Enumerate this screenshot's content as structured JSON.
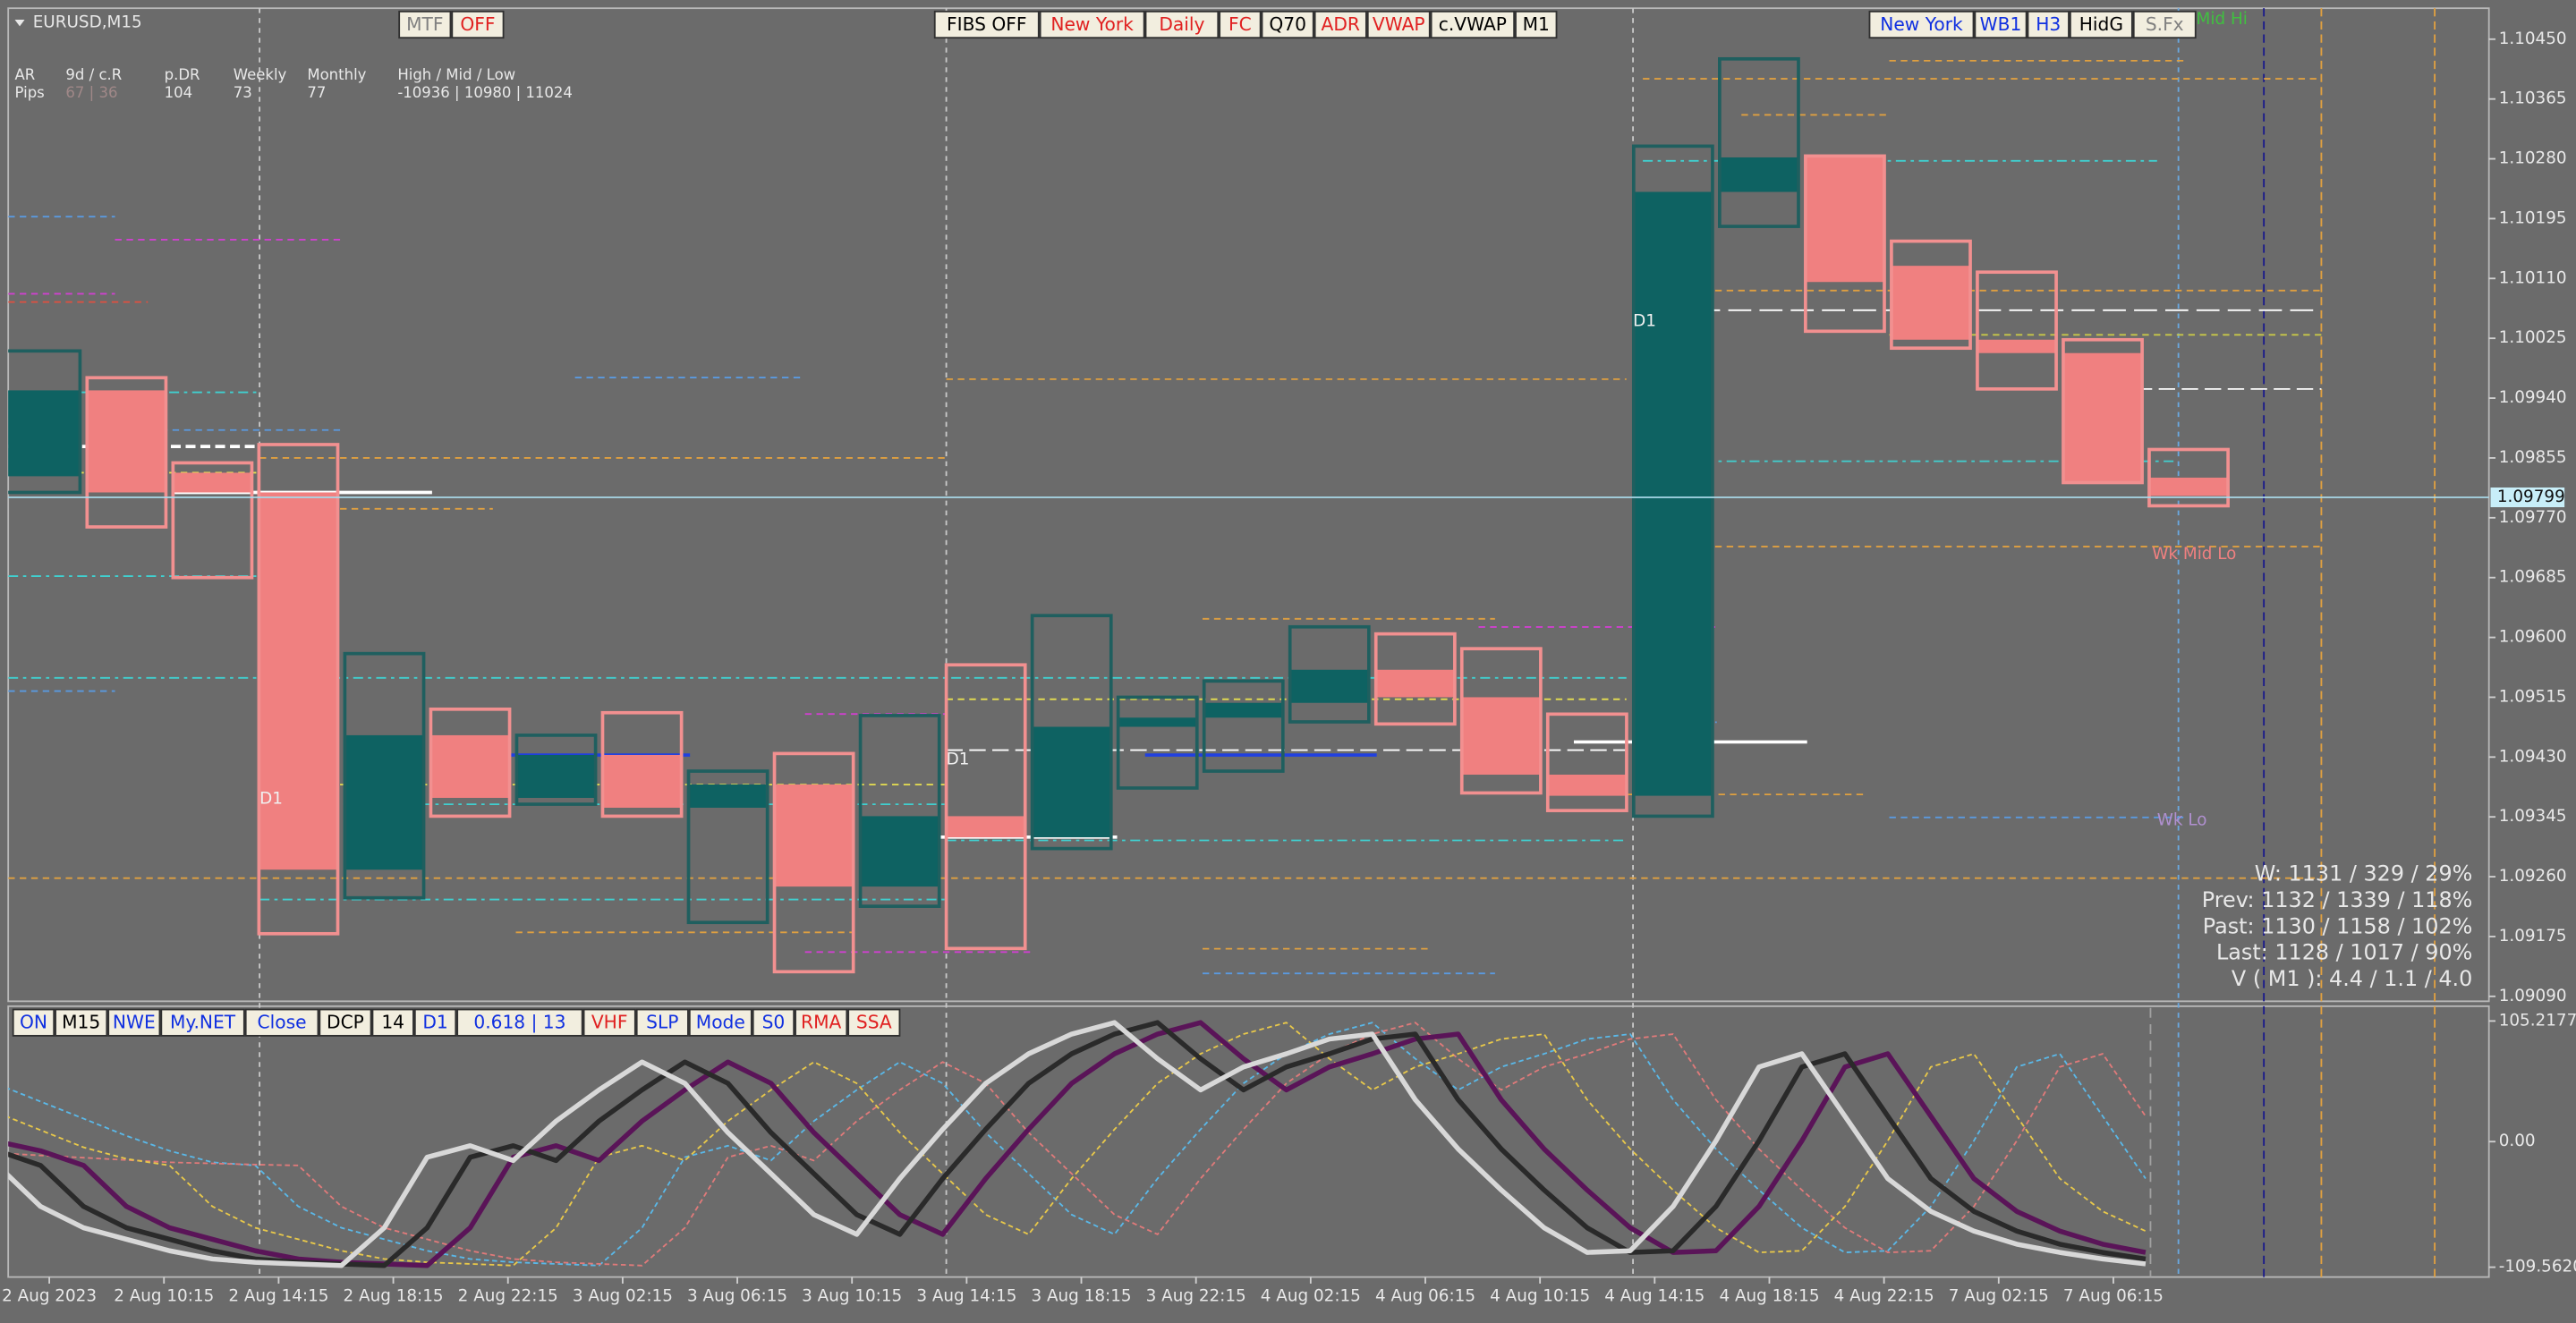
{
  "chart_data": [
    {
      "type": "candlestick",
      "title": "EURUSD,M15",
      "open": [
        1.09829,
        1.09951,
        1.09834,
        1.09806,
        1.0927,
        1.09461,
        1.09372,
        1.09433,
        1.09358,
        1.09391,
        1.09246,
        1.09346,
        1.09316,
        1.09473,
        1.09486,
        1.09507,
        1.09554,
        1.09515,
        1.09405,
        1.09375,
        1.10233,
        1.10282,
        1.10128,
        1.10023,
        1.10004,
        1.09827
      ],
      "high": [
        1.10007,
        1.09969,
        1.09848,
        1.09874,
        1.09577,
        1.09498,
        1.09461,
        1.09493,
        1.0941,
        1.09435,
        1.09489,
        1.09561,
        1.09631,
        1.09515,
        1.09538,
        1.09615,
        1.09605,
        1.09584,
        1.09491,
        1.10298,
        1.10422,
        1.10284,
        1.10163,
        1.10119,
        1.10023,
        1.09867
      ],
      "low": [
        1.09806,
        1.09757,
        1.09685,
        1.09179,
        1.0923,
        1.09346,
        1.09363,
        1.09346,
        1.09195,
        1.09125,
        1.09218,
        1.09158,
        1.093,
        1.09386,
        1.0941,
        1.0948,
        1.09477,
        1.09379,
        1.09354,
        1.09346,
        1.10184,
        1.10035,
        1.10011,
        1.09953,
        1.0982,
        1.09787
      ],
      "close": [
        1.09951,
        1.09806,
        1.09806,
        1.0927,
        1.09461,
        1.09372,
        1.09433,
        1.09358,
        1.09391,
        1.09246,
        1.09346,
        1.09316,
        1.09473,
        1.09486,
        1.09507,
        1.09554,
        1.09515,
        1.09405,
        1.09375,
        1.10233,
        1.10282,
        1.10105,
        1.10023,
        1.10004,
        1.0982,
        1.09801
      ],
      "colors": {
        "up": "#0e6262",
        "down": "#f08080",
        "up_edge": "#1f5f5f",
        "down_edge": "#f29090"
      },
      "ylim": [
        1.09083,
        1.10494
      ],
      "yticks": [
        {
          "value": 1.1045,
          "label": "1.10450"
        },
        1.10365,
        {
          "value": 1.1028,
          "label": "1.10280"
        },
        1.10195,
        {
          "value": 1.1011,
          "label": "1.10110"
        },
        1.10025,
        {
          "value": 1.0994,
          "label": "1.09940"
        },
        1.09855,
        {
          "value": 1.0977,
          "label": "1.09770"
        },
        1.09685,
        {
          "value": 1.096,
          "label": "1.09600"
        },
        1.09515,
        {
          "value": 1.0943,
          "label": "1.09430"
        },
        1.09345,
        {
          "value": 1.0926,
          "label": "1.09260"
        },
        1.09175,
        {
          "value": 1.0909,
          "label": "1.09090"
        }
      ],
      "current_price": 1.09799,
      "x_labels": [
        "2 Aug 2023",
        "2 Aug 10:15",
        "2 Aug 14:15",
        "2 Aug 18:15",
        "2 Aug 22:15",
        "3 Aug 02:15",
        "3 Aug 06:15",
        "3 Aug 10:15",
        "3 Aug 14:15",
        "3 Aug 18:15",
        "3 Aug 22:15",
        "4 Aug 02:15",
        "4 Aug 06:15",
        "4 Aug 10:15",
        "4 Aug 14:15",
        "4 Aug 18:15",
        "4 Aug 22:15",
        "7 Aug 02:15",
        "7 Aug 06:15"
      ],
      "annotations": [
        "D1",
        "D1",
        "D1",
        "Wk Mid Lo",
        "Wk Lo",
        "Fx Mid Hi"
      ]
    },
    {
      "type": "line",
      "ylim": [
        -118.15,
        116.7
      ],
      "yticks": [
        105.21774,
        {
          "value": 0,
          "label": "0.00"
        },
        {
          "value": -109.562,
          "label": "-109.5620"
        }
      ],
      "series": [
        {
          "color": "#5ab8e8",
          "dashed": true,
          "width": 1,
          "values": [
            50.0,
            35.0,
            20.0,
            5.0,
            -8.0,
            -18.0,
            -20.8,
            -56.6,
            -75.2,
            -85.2,
            -95.2,
            -102.4,
            -105.3,
            -106.7,
            -108.1,
            -75.2,
            -13.6,
            -3.6,
            -16.5,
            17.9,
            45.1,
            69.5,
            50.8,
            7.9,
            -27.9,
            -63.7,
            -80.9,
            -32.2,
            10.7,
            50.8,
            76.6,
            93.8,
            103.8,
            72.3,
            45.1,
            65.2,
            76.6,
            89.5,
            93.8,
            36.5,
            -6.4,
            -42.2,
            -75.2,
            -96.7,
            -95.2,
            -56.6,
            0.7,
            65.2,
            76.6,
            22.2,
            -32.2
          ]
        },
        {
          "color": "#e07a7a",
          "dashed": true,
          "width": 1,
          "values": [
            -10.0,
            -12.0,
            -14.0,
            -16.0,
            -18.0,
            -19.0,
            -20.0,
            -20.8,
            -56.6,
            -75.2,
            -85.2,
            -95.2,
            -102.4,
            -105.3,
            -106.7,
            -108.1,
            -75.2,
            -13.6,
            -3.6,
            -16.5,
            17.9,
            45.1,
            69.5,
            50.8,
            7.9,
            -27.9,
            -63.7,
            -80.9,
            -32.2,
            10.7,
            50.8,
            76.6,
            93.8,
            103.8,
            72.3,
            45.1,
            65.2,
            76.6,
            89.5,
            93.8,
            36.5,
            -6.4,
            -42.2,
            -75.2,
            -96.7,
            -95.2,
            -56.6,
            0.7,
            65.2,
            76.6,
            22.2
          ]
        },
        {
          "color": "#e8c84a",
          "dashed": true,
          "width": 1,
          "values": [
            25.0,
            10.0,
            -5.0,
            -15.0,
            -20.8,
            -56.6,
            -75.2,
            -85.2,
            -95.2,
            -102.4,
            -105.3,
            -106.7,
            -108.1,
            -75.2,
            -13.6,
            -3.6,
            -16.5,
            17.9,
            45.1,
            69.5,
            50.8,
            7.9,
            -27.9,
            -63.7,
            -80.9,
            -32.2,
            10.7,
            50.8,
            76.6,
            93.8,
            103.8,
            72.3,
            45.1,
            65.2,
            76.6,
            89.5,
            93.8,
            36.5,
            -6.4,
            -42.2,
            -75.2,
            -96.7,
            -95.2,
            -56.6,
            0.7,
            65.2,
            76.6,
            22.2,
            -32.2,
            -60.9,
            -78.0
          ]
        },
        {
          "color": "#5a1458",
          "dashed": false,
          "width": 3,
          "values": [
            0.0,
            -8.0,
            -20.8,
            -56.6,
            -75.2,
            -85.2,
            -95.2,
            -102.4,
            -105.3,
            -106.7,
            -108.1,
            -75.2,
            -13.6,
            -3.6,
            -16.5,
            17.9,
            45.1,
            69.5,
            50.8,
            7.9,
            -27.9,
            -63.7,
            -80.9,
            -32.2,
            10.7,
            50.8,
            76.6,
            93.8,
            103.8,
            72.3,
            45.1,
            65.2,
            76.6,
            89.5,
            93.8,
            36.5,
            -6.4,
            -42.2,
            -75.2,
            -96.7,
            -95.2,
            -56.6,
            0.7,
            65.2,
            76.6,
            22.2,
            -32.2,
            -60.9,
            -78.0,
            -89.5,
            -96.7
          ]
        },
        {
          "color": "#2a2a2a",
          "dashed": false,
          "width": 3,
          "values": [
            -8.0,
            -20.8,
            -56.6,
            -75.2,
            -85.2,
            -95.2,
            -102.4,
            -105.3,
            -106.7,
            -108.1,
            -75.2,
            -13.6,
            -3.6,
            -16.5,
            17.9,
            45.1,
            69.5,
            50.8,
            7.9,
            -27.9,
            -63.7,
            -80.9,
            -32.2,
            10.7,
            50.8,
            76.6,
            93.8,
            103.8,
            72.3,
            45.1,
            65.2,
            76.6,
            89.5,
            93.8,
            36.5,
            -6.4,
            -42.2,
            -75.2,
            -96.7,
            -95.2,
            -56.6,
            0.7,
            65.2,
            76.6,
            22.2,
            -32.2,
            -60.9,
            -78.0,
            -89.5,
            -96.7,
            -102.4
          ]
        },
        {
          "color": "#d8d8d8",
          "dashed": false,
          "width": 3,
          "values": [
            -20.8,
            -56.6,
            -75.2,
            -85.2,
            -95.2,
            -102.4,
            -105.3,
            -106.7,
            -108.1,
            -75.2,
            -13.6,
            -3.6,
            -16.5,
            17.9,
            45.1,
            69.5,
            50.8,
            7.9,
            -27.9,
            -63.7,
            -80.9,
            -32.2,
            10.7,
            50.8,
            76.6,
            93.8,
            103.8,
            72.3,
            45.1,
            65.2,
            76.6,
            89.5,
            93.8,
            36.5,
            -6.4,
            -42.2,
            -75.2,
            -96.7,
            -95.2,
            -56.6,
            0.7,
            65.2,
            76.6,
            22.2,
            -32.2,
            -60.9,
            -78.0,
            -89.5,
            -96.7,
            -102.4,
            -106.7
          ]
        }
      ]
    }
  ],
  "toolbar_top_left": [
    {
      "label": "MTF",
      "color": "#808080"
    },
    {
      "label": "OFF",
      "color": "#e02020"
    }
  ],
  "toolbar_top_center": [
    {
      "label": "FIBS OFF",
      "color": "#000000"
    },
    {
      "label": "New York",
      "color": "#e02020"
    },
    {
      "label": "Daily",
      "color": "#e02020"
    },
    {
      "label": "FC",
      "color": "#e02020"
    },
    {
      "label": "Q70",
      "color": "#000000"
    },
    {
      "label": "ADR",
      "color": "#e02020"
    },
    {
      "label": "VWAP",
      "color": "#e02020"
    },
    {
      "label": "c.VWAP",
      "color": "#000000"
    },
    {
      "label": "M1",
      "color": "#000000"
    }
  ],
  "toolbar_top_right": [
    {
      "label": "New York",
      "color": "#1030e0"
    },
    {
      "label": "WB1",
      "color": "#1030e0"
    },
    {
      "label": "H3",
      "color": "#1030e0"
    },
    {
      "label": "HidG",
      "color": "#000000"
    },
    {
      "label": "S.Fx",
      "color": "#808080"
    }
  ],
  "toolbar_bottom": [
    {
      "label": "ON",
      "color": "#1030e0"
    },
    {
      "label": "M15",
      "color": "#000000"
    },
    {
      "label": "NWE",
      "color": "#1030e0"
    },
    {
      "label": "My.NET",
      "color": "#1030e0"
    },
    {
      "label": "Close",
      "color": "#1030e0"
    },
    {
      "label": "DCP",
      "color": "#000000"
    },
    {
      "label": "14",
      "color": "#000000"
    },
    {
      "label": "D1",
      "color": "#1030e0"
    },
    {
      "label": "0.618 | 13",
      "color": "#1030e0"
    },
    {
      "label": "VHF",
      "color": "#e02020"
    },
    {
      "label": "SLP",
      "color": "#1030e0"
    },
    {
      "label": "Mode",
      "color": "#1030e0"
    },
    {
      "label": "S0",
      "color": "#1030e0"
    },
    {
      "label": "RMA",
      "color": "#e02020"
    },
    {
      "label": "SSA",
      "color": "#e02020"
    }
  ],
  "info_panel": {
    "headers": [
      "AR",
      "9d / c.R",
      "p.DR",
      "Weekly",
      "Monthly",
      "High / Mid / Low"
    ],
    "row": [
      "Pips",
      "67 | 36",
      "104",
      "73",
      "77",
      "-10936 | 10980 | 11024"
    ]
  },
  "stats": [
    "W: 1131 / 329 / 29%",
    "Prev: 1132 / 1339 / 118%",
    "Past: 1130 / 1158 / 102%",
    "Last: 1128 / 1017 / 90%",
    "V ( M1 ): 4.4 / 1.1 / 4.0"
  ]
}
